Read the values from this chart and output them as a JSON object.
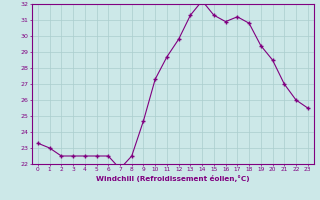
{
  "x": [
    0,
    1,
    2,
    3,
    4,
    5,
    6,
    7,
    8,
    9,
    10,
    11,
    12,
    13,
    14,
    15,
    16,
    17,
    18,
    19,
    20,
    21,
    22,
    23
  ],
  "y": [
    23.3,
    23.0,
    22.5,
    22.5,
    22.5,
    22.5,
    22.5,
    21.7,
    22.5,
    24.7,
    27.3,
    28.7,
    29.8,
    31.3,
    32.2,
    31.3,
    30.9,
    31.2,
    30.8,
    29.4,
    28.5,
    27.0,
    26.0,
    25.5
  ],
  "ylim": [
    22,
    32
  ],
  "yticks": [
    22,
    23,
    24,
    25,
    26,
    27,
    28,
    29,
    30,
    31,
    32
  ],
  "xlabel": "Windchill (Refroidissement éolien,°C)",
  "line_color": "#800080",
  "marker_color": "#800080",
  "bg_color": "#cce8e8",
  "grid_color": "#aacece",
  "tick_color": "#800080",
  "label_color": "#800080"
}
